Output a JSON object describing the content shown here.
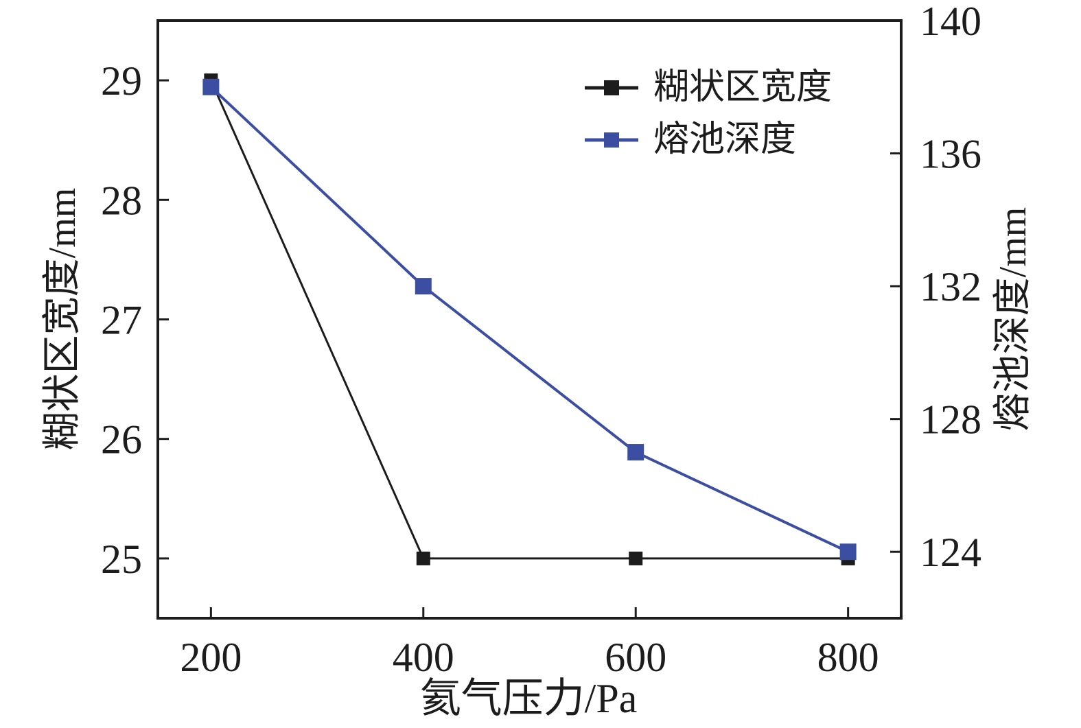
{
  "chart_data": {
    "type": "line",
    "x": [
      200,
      400,
      600,
      800
    ],
    "xlabel": "氦气压力/Pa",
    "x_ticks": [
      "200",
      "400",
      "600",
      "800"
    ],
    "x_range": [
      150,
      850
    ],
    "left_axis": {
      "label": "糊状区宽度/mm",
      "ticks": [
        "25",
        "26",
        "27",
        "28",
        "29"
      ],
      "tick_values": [
        25,
        26,
        27,
        28,
        29
      ],
      "range": [
        24.5,
        29.5
      ]
    },
    "right_axis": {
      "label": "熔池深度/mm",
      "ticks": [
        "124",
        "128",
        "132",
        "136",
        "140"
      ],
      "tick_values": [
        124,
        128,
        132,
        136,
        140
      ],
      "range": [
        122,
        140
      ]
    },
    "series": [
      {
        "name": "糊状区宽度",
        "axis": "left",
        "color": "#1c1c1c",
        "marker": "square",
        "marker_size": 20,
        "line_width": 3,
        "values": [
          29,
          25,
          25,
          25
        ]
      },
      {
        "name": "熔池深度",
        "axis": "right",
        "color": "#3b4ea2",
        "marker": "square",
        "marker_size": 24,
        "line_width": 4,
        "values": [
          138,
          132,
          127,
          124
        ]
      }
    ],
    "legend": {
      "position": "upper-right",
      "entries": [
        "糊状区宽度",
        "熔池深度"
      ]
    },
    "grid": false,
    "frame_color": "#1c1c1c",
    "background": "#ffffff"
  }
}
